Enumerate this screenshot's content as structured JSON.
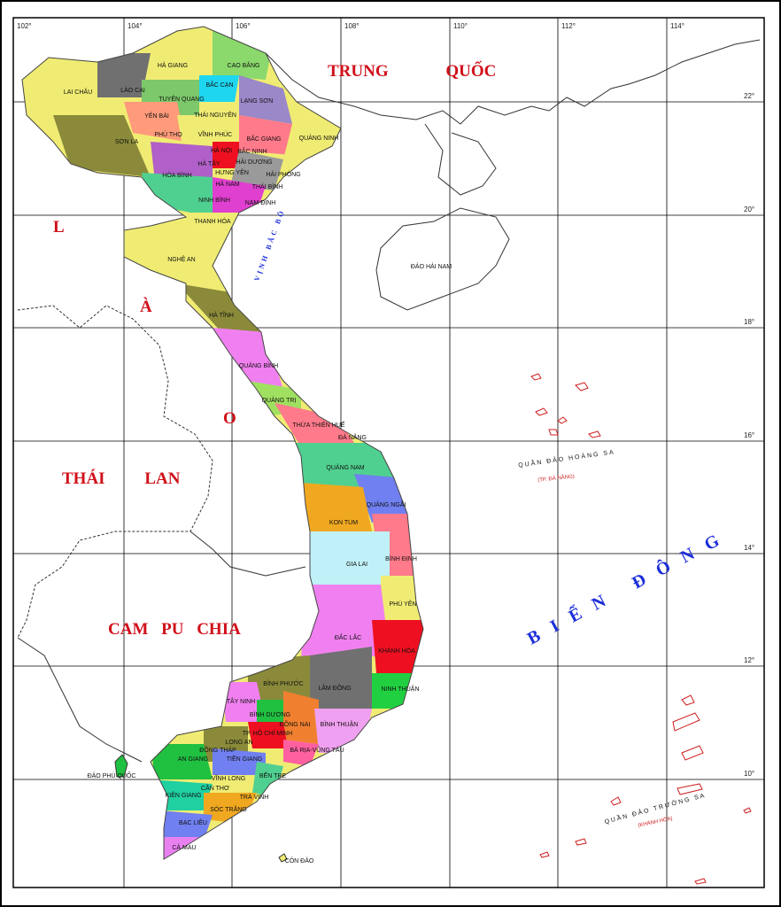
{
  "grid": {
    "longitudes": [
      "102°",
      "104°",
      "106°",
      "108°",
      "110°",
      "112°",
      "114°"
    ],
    "latitudes": [
      "22°",
      "20°",
      "18°",
      "16°",
      "14°",
      "12°",
      "10°"
    ]
  },
  "countries": {
    "china": "TRUNG QUỐC",
    "laos_letters": [
      "L",
      "À",
      "O"
    ],
    "thailand": "THÁI LAN",
    "cambodia": "CAM PU CHIA"
  },
  "sea": {
    "east_sea": "BIỂN ĐÔNG",
    "gulf": "VỊNH BẮC BỘ"
  },
  "islands": {
    "hainan": "ĐẢO HẢI NAM",
    "phu_quoc": "ĐẢO PHÚ QUỐC",
    "con_dao": "CÔN ĐẢO",
    "hoang_sa": "QUẦN ĐẢO HOÀNG SA",
    "hoang_sa_admin": "(TP. ĐÀ NẴNG)",
    "truong_sa": "QUẦN ĐẢO TRƯỜNG SA",
    "truong_sa_admin": "(KHÁNH HÒA)"
  },
  "provinces": [
    "HÀ GIANG",
    "CAO BẰNG",
    "LAI CHÂU",
    "LÀO CAI",
    "BẮC CẠN",
    "TUYÊN QUANG",
    "LẠNG SƠN",
    "YÊN BÁI",
    "THÁI NGUYÊN",
    "PHÚ THỌ",
    "VĨNH PHÚC",
    "BẮC GIANG",
    "QUẢNG NINH",
    "SƠN LA",
    "HÀ NỘI",
    "BẮC NINH",
    "HÀ TÂY",
    "HẢI DƯƠNG",
    "HƯNG YÊN",
    "HẢI PHÒNG",
    "HÒA BÌNH",
    "HÀ NAM",
    "THÁI BÌNH",
    "NINH BÌNH",
    "NAM ĐỊNH",
    "THANH HÓA",
    "NGHỆ AN",
    "HÀ TĨNH",
    "QUẢNG BÌNH",
    "QUẢNG TRỊ",
    "THỪA THIÊN HUẾ",
    "ĐÀ NẴNG",
    "QUẢNG NAM",
    "QUẢNG NGÃI",
    "KON TUM",
    "BÌNH ĐỊNH",
    "GIA LAI",
    "PHÚ YÊN",
    "ĐẮC LẮC",
    "KHÁNH HÒA",
    "BÌNH PHƯỚC",
    "LÂM ĐỒNG",
    "NINH THUẬN",
    "TÂY NINH",
    "BÌNH DƯƠNG",
    "ĐỒNG NAI",
    "BÌNH THUẬN",
    "TP. HỒ CHÍ MINH",
    "LONG AN",
    "ĐỒNG THÁP",
    "BÀ RỊA-VŨNG TÀU",
    "AN GIANG",
    "TIỀN GIANG",
    "VĨNH LONG",
    "BẾN TRE",
    "CẦN THƠ",
    "KIÊN GIANG",
    "TRÀ VINH",
    "SÓC TRĂNG",
    "BẠC LIÊU",
    "CÀ MAU"
  ]
}
